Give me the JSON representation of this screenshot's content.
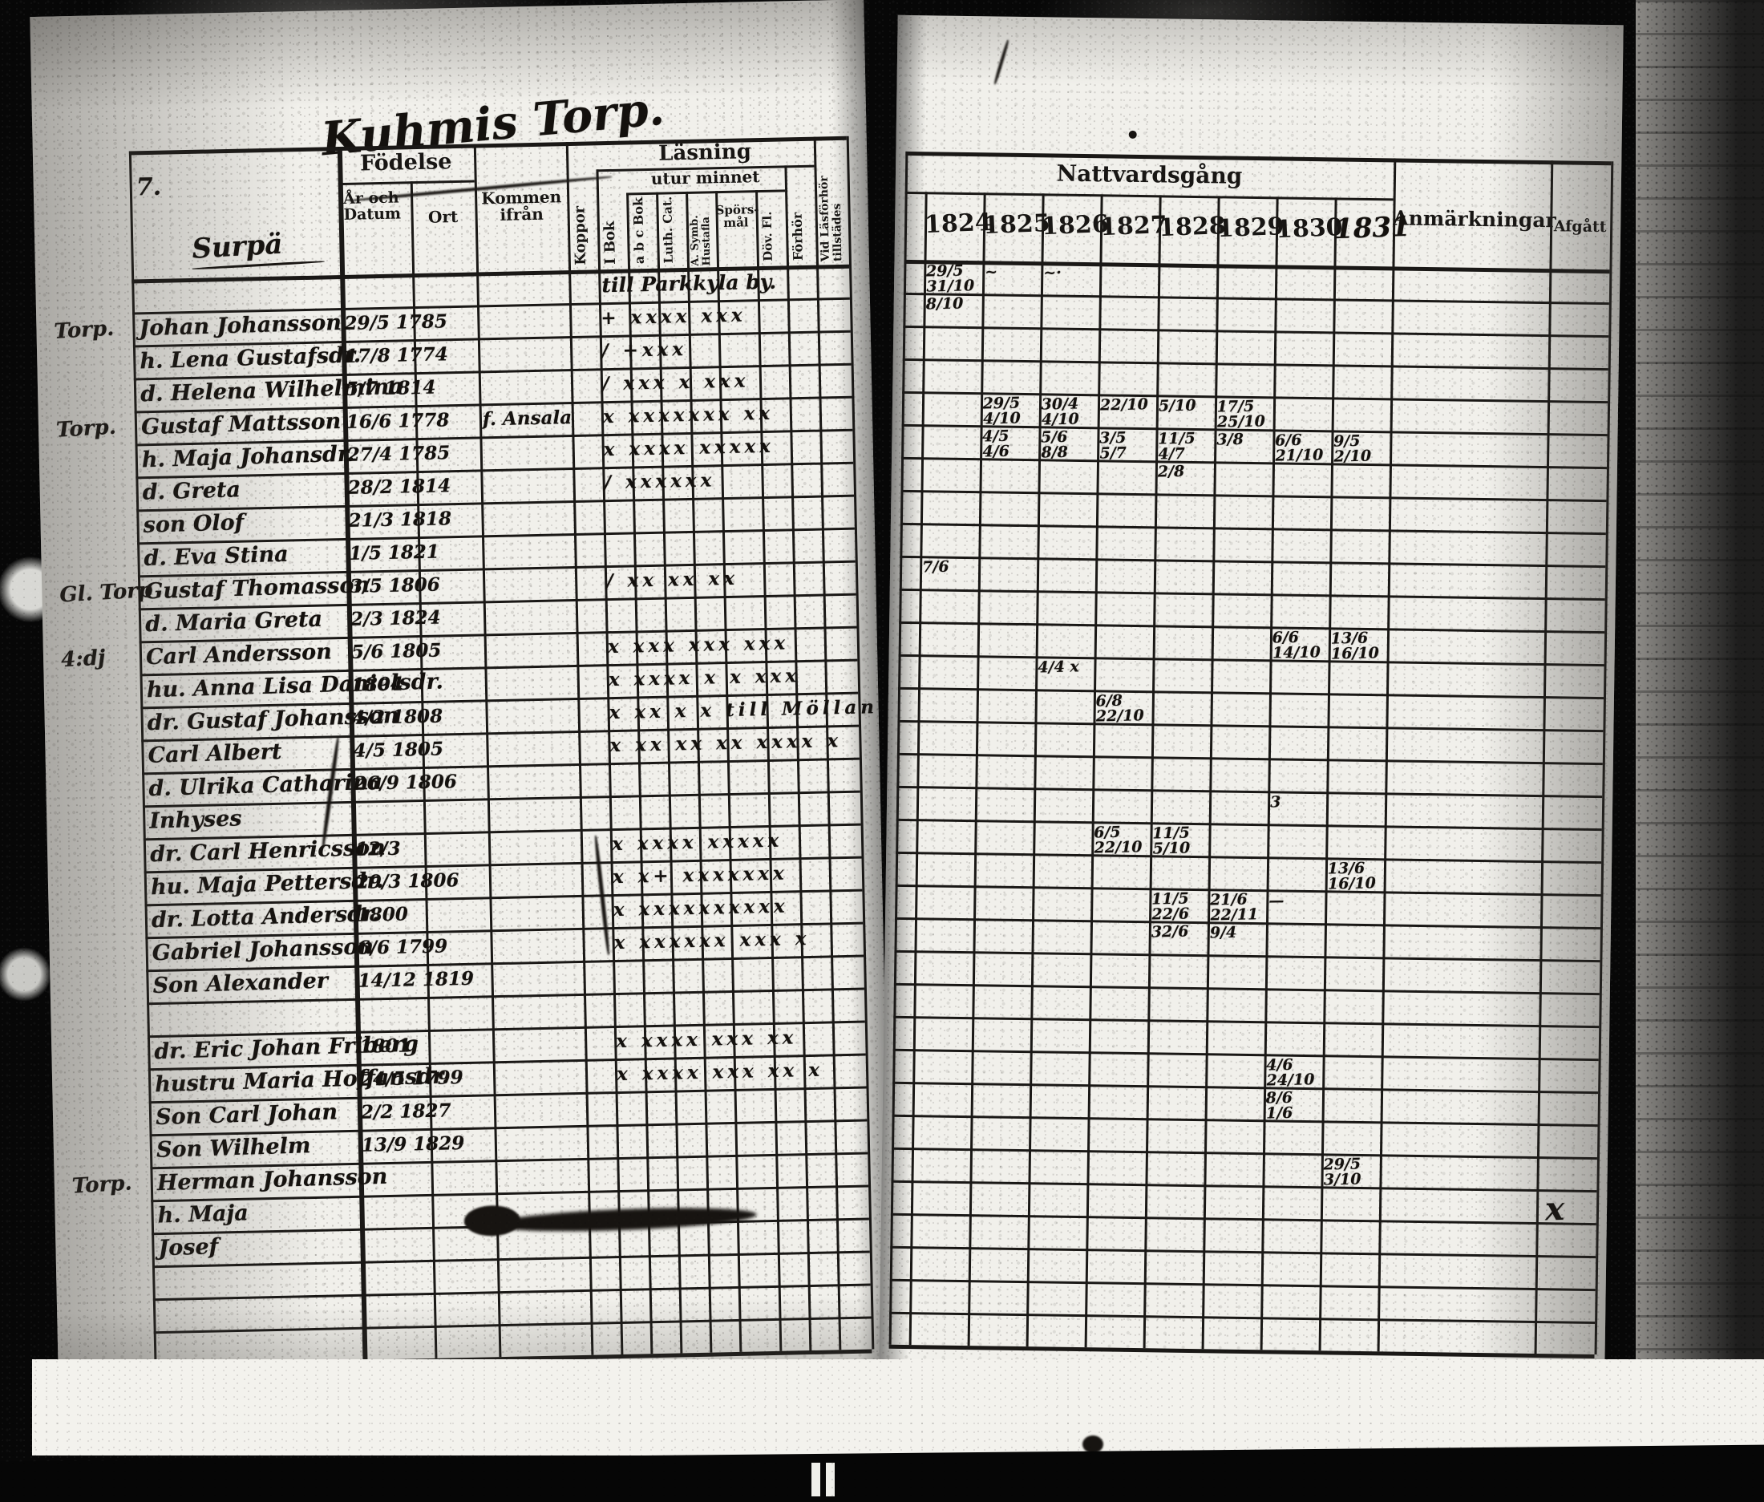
{
  "document": {
    "folio_number": "7.",
    "frame_mark_left": "I",
    "frame_mark_right": "I"
  },
  "left_page": {
    "title": "Kuhmis Torp.",
    "village_heading": "Surpä",
    "headers": {
      "fodelse": "Födelse",
      "ar_och_datum": "År och Datum",
      "ort": "Ort",
      "kommen_ifran": "Kommen ifrån",
      "koppor": "Koppor",
      "lasning": "Läsning",
      "utur_minnet": "utur minnet",
      "i_bok": "I Bok",
      "abc_bok": "a b c Bok",
      "luth_cat": "Luth. Cat.",
      "a_symb_hustafla": "A. Symb. Hustafla",
      "sporsmal": "Spörs-mål",
      "dov_fl": "Döv. Fl.",
      "forhor": "Förhör",
      "vid_lasforhor": "Vid Läsförhör tillstädes"
    },
    "rows": [
      {
        "inscription": "till Parkkyla by."
      },
      {
        "margin": "Torp.",
        "name": "Johan Johansson",
        "date": "29/5 1785",
        "marks": "+ xxxx xxx"
      },
      {
        "name": "h. Lena Gustafsdr.",
        "date": "17/8 1774",
        "marks": "/ +xxx"
      },
      {
        "name": "d. Helena Wilhelmina",
        "date": "5/7 1814",
        "marks": "/ xxx x xxx"
      },
      {
        "margin": "Torp.",
        "name": "Gustaf Mattsson",
        "date": "16/6 1778",
        "kommen": "f. Ansala",
        "marks": "x xxxxxxx xx"
      },
      {
        "name": "h. Maja Johansdr.",
        "date": "27/4 1785",
        "marks": "x xxxx xxxxx"
      },
      {
        "name": "d. Greta",
        "date": "28/2 1814",
        "marks": "/ xxxxxx"
      },
      {
        "name": "son Olof",
        "date": "21/3 1818"
      },
      {
        "name": "d. Eva Stina",
        "date": "1/5 1821"
      },
      {
        "margin": "Gl. Torp",
        "name": "Gustaf Thomasson",
        "date": "3/5 1806",
        "marks": "/ xx xx xx"
      },
      {
        "name": "d. Maria Greta",
        "date": "2/3 1824"
      },
      {
        "margin": "4:dj",
        "name": "Carl Andersson",
        "date": "5/6 1805",
        "marks": "x xxx xxx xxx"
      },
      {
        "name": "hu. Anna Lisa Danielsdr.",
        "date": "1804",
        "marks": "x xxxx x x xxx"
      },
      {
        "name": "dr. Gustaf Johansson",
        "date": "4/2 1808",
        "marks": "x xx x x till Möllan"
      },
      {
        "name": "Carl Albert",
        "date": "4/5 1805",
        "marks": "x xx xx xx xxxx x"
      },
      {
        "name": "d. Ulrika Catharina",
        "date": "26/9 1806"
      },
      {
        "name": "Inhyses"
      },
      {
        "name": "dr. Carl Henricsson",
        "date": "12/3",
        "marks": "x xxxx xxxxx"
      },
      {
        "name": "hu. Maja Pettersdr.",
        "date": "29/3 1806",
        "marks": "x x+ xxxxxxx"
      },
      {
        "name": "dr. Lotta Andersdr.",
        "date": "1800",
        "marks": "x xxxxxxxxxx"
      },
      {
        "name": "Gabriel Johansson",
        "date": "6/6 1799",
        "marks": "x xxxxxx xxx x"
      },
      {
        "name": "Son Alexander",
        "date": "14/12 1819"
      },
      {},
      {
        "name": "dr. Eric Johan Friberg",
        "date": "1801",
        "marks": "x xxxx xxx xx"
      },
      {
        "name": "hustru Maria Hoffansdr.",
        "date": "24/5 1799",
        "marks": "x xxxx xxx xx x"
      },
      {
        "name": "Son Carl Johan",
        "date": "2/2 1827"
      },
      {
        "name": "Son Wilhelm",
        "date": "13/9 1829"
      },
      {
        "margin": "Torp.",
        "name": "Herman Johansson"
      },
      {
        "name": "h. Maja",
        "struck": true
      },
      {
        "name": "Josef"
      },
      {},
      {},
      {}
    ]
  },
  "right_page": {
    "headers": {
      "nattvardsgang": "Nattvardsgång",
      "anmarkningar": "Anmärkningar",
      "afgatt": "Afgått"
    },
    "years": [
      "1824",
      "1825",
      "1826",
      "1827",
      "1828",
      "1829",
      "1830",
      "1831"
    ],
    "handwritten_year_index": 7,
    "entries": [
      {
        "row": 0,
        "col": "1824",
        "text": "29/5 31/10"
      },
      {
        "row": 0,
        "col": "1825",
        "text": "~"
      },
      {
        "row": 0,
        "col": "1826",
        "text": "~·"
      },
      {
        "row": 1,
        "col": "1824",
        "text": "8/10"
      },
      {
        "row": 4,
        "col": "1825",
        "text": "29/5 4/10"
      },
      {
        "row": 4,
        "col": "1826",
        "text": "30/4 4/10"
      },
      {
        "row": 4,
        "col": "1827",
        "text": "22/10"
      },
      {
        "row": 4,
        "col": "1828",
        "text": "5/10"
      },
      {
        "row": 4,
        "col": "1829",
        "text": "17/5 25/10"
      },
      {
        "row": 5,
        "col": "1825",
        "text": "4/5 4/6"
      },
      {
        "row": 5,
        "col": "1826",
        "text": "5/6 8/8"
      },
      {
        "row": 5,
        "col": "1827",
        "text": "3/5 5/7"
      },
      {
        "row": 5,
        "col": "1828",
        "text": "11/5 4/7"
      },
      {
        "row": 5,
        "col": "1829",
        "text": "3/8"
      },
      {
        "row": 5,
        "col": "1830",
        "text": "6/6 21/10"
      },
      {
        "row": 5,
        "col": "1831",
        "text": "9/5 2/10"
      },
      {
        "row": 6,
        "col": "1828",
        "text": "2/8"
      },
      {
        "row": 9,
        "col": "1824",
        "text": "7/6"
      },
      {
        "row": 11,
        "col": "1830",
        "text": "6/6 14/10"
      },
      {
        "row": 11,
        "col": "1831",
        "text": "13/6 16/10"
      },
      {
        "row": 12,
        "col": "1826",
        "text": "4/4 x"
      },
      {
        "row": 13,
        "col": "1827",
        "text": "6/8 22/10"
      },
      {
        "row": 16,
        "col": "1830",
        "text": "3"
      },
      {
        "row": 17,
        "col": "1827",
        "text": "6/5 22/10"
      },
      {
        "row": 17,
        "col": "1828",
        "text": "11/5 5/10"
      },
      {
        "row": 18,
        "col": "1831",
        "text": "13/6 16/10"
      },
      {
        "row": 19,
        "col": "1828",
        "text": "11/5 22/6"
      },
      {
        "row": 19,
        "col": "1829",
        "text": "21/6 22/11"
      },
      {
        "row": 19,
        "col": "1830",
        "text": "—"
      },
      {
        "row": 20,
        "col": "1828",
        "text": "32/6"
      },
      {
        "row": 20,
        "col": "1829",
        "text": "9/4"
      },
      {
        "row": 24,
        "col": "1830",
        "text": "4/6 24/10"
      },
      {
        "row": 25,
        "col": "1830",
        "text": "8/6 1/6"
      },
      {
        "row": 27,
        "col": "1831",
        "text": "29/5 3/10"
      },
      {
        "row": 28,
        "col": "afgatt",
        "text": "x"
      }
    ]
  }
}
